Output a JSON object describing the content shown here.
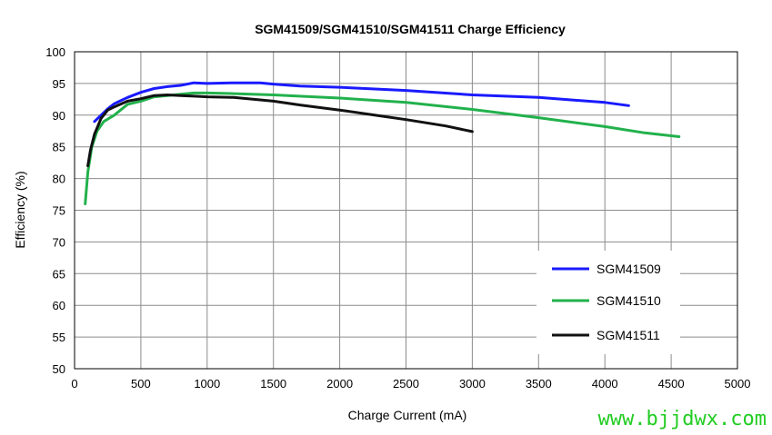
{
  "chart_data": {
    "type": "line",
    "title": "SGM41509/SGM41510/SGM41511 Charge Efficiency",
    "xlabel": "Charge Current (mA)",
    "ylabel": "Efficiency (%)",
    "xlim": [
      0,
      5000
    ],
    "ylim": [
      50,
      100
    ],
    "xticks": [
      0,
      500,
      1000,
      1500,
      2000,
      2500,
      3000,
      3500,
      4000,
      4500,
      5000
    ],
    "yticks": [
      50,
      55,
      60,
      65,
      70,
      75,
      80,
      85,
      90,
      95,
      100
    ],
    "grid": true,
    "legend_position": "bottom-right",
    "series": [
      {
        "name": "SGM41509",
        "color": "#1a1aff",
        "x": [
          150,
          200,
          250,
          300,
          400,
          500,
          600,
          700,
          800,
          900,
          1000,
          1200,
          1400,
          1500,
          1700,
          2000,
          2500,
          3000,
          3500,
          4000,
          4180
        ],
        "y": [
          89.0,
          90.0,
          91.0,
          91.8,
          92.8,
          93.6,
          94.2,
          94.5,
          94.7,
          95.1,
          95.0,
          95.1,
          95.1,
          94.9,
          94.6,
          94.4,
          93.9,
          93.2,
          92.8,
          92.0,
          91.5
        ]
      },
      {
        "name": "SGM41510",
        "color": "#22b14c",
        "x": [
          80,
          100,
          130,
          170,
          220,
          300,
          400,
          500,
          600,
          700,
          800,
          900,
          1000,
          1200,
          1500,
          2000,
          2500,
          3000,
          3500,
          4000,
          4300,
          4560
        ],
        "y": [
          76.0,
          81.0,
          85.0,
          87.5,
          89.0,
          90.0,
          91.7,
          92.2,
          92.9,
          93.1,
          93.3,
          93.5,
          93.5,
          93.4,
          93.2,
          92.7,
          92.0,
          90.9,
          89.6,
          88.2,
          87.2,
          86.6
        ]
      },
      {
        "name": "SGM41511",
        "color": "#111111",
        "x": [
          100,
          120,
          150,
          200,
          250,
          300,
          400,
          500,
          600,
          700,
          800,
          900,
          1000,
          1200,
          1500,
          1700,
          2000,
          2300,
          2500,
          2800,
          3000
        ],
        "y": [
          82.0,
          84.5,
          87.0,
          89.5,
          90.8,
          91.3,
          92.2,
          92.6,
          93.1,
          93.2,
          93.1,
          93.0,
          92.9,
          92.8,
          92.2,
          91.6,
          90.8,
          89.9,
          89.3,
          88.3,
          87.4
        ]
      }
    ]
  },
  "watermark": "www.bjjdwx.com"
}
